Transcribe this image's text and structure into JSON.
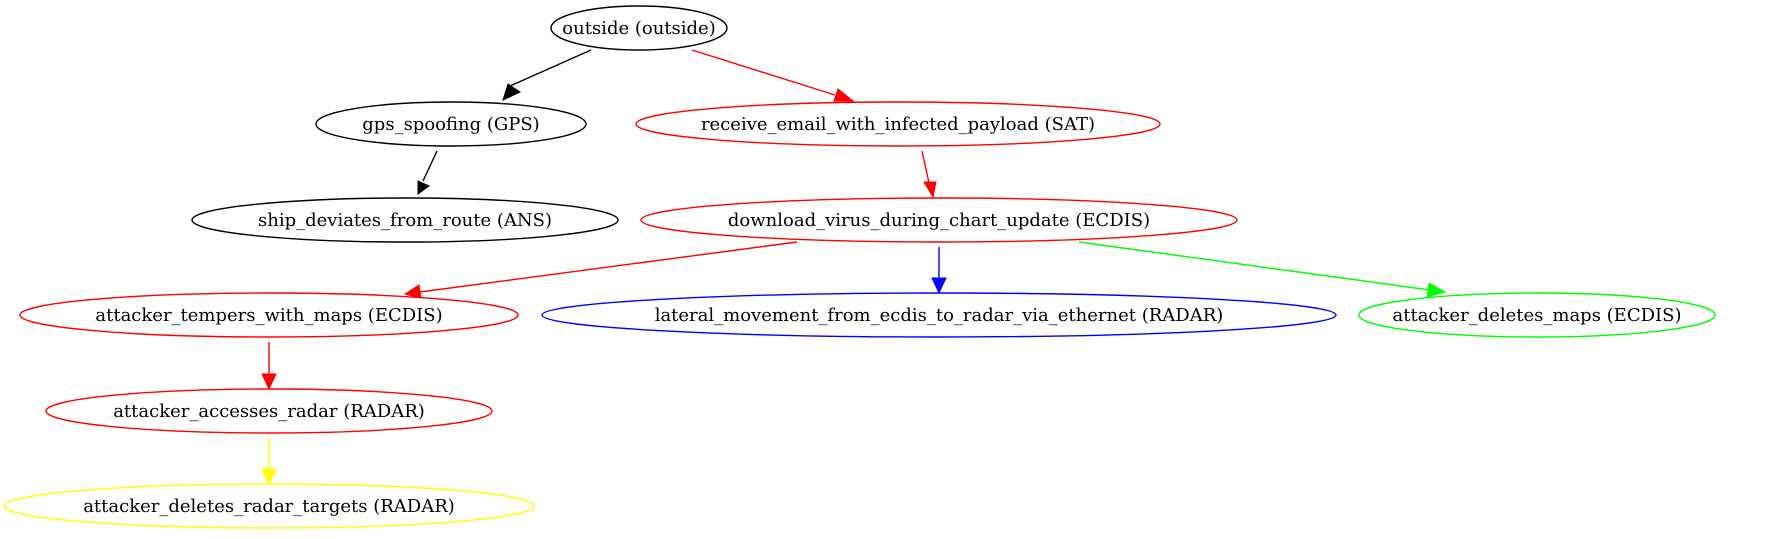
{
  "graph": {
    "nodes": [
      {
        "id": "outside",
        "label": "outside (outside)",
        "color": "#000000"
      },
      {
        "id": "gps_spoofing",
        "label": "gps_spoofing (GPS)",
        "color": "#000000"
      },
      {
        "id": "receive_email",
        "label": "receive_email_with_infected_payload (SAT)",
        "color": "#ff0000"
      },
      {
        "id": "ship_deviates",
        "label": "ship_deviates_from_route (ANS)",
        "color": "#000000"
      },
      {
        "id": "download_virus",
        "label": "download_virus_during_chart_update (ECDIS)",
        "color": "#ff0000"
      },
      {
        "id": "tempers_maps",
        "label": "attacker_tempers_with_maps (ECDIS)",
        "color": "#ff0000"
      },
      {
        "id": "lateral_movement",
        "label": "lateral_movement_from_ecdis_to_radar_via_ethernet (RADAR)",
        "color": "#0000ff"
      },
      {
        "id": "deletes_maps",
        "label": "attacker_deletes_maps (ECDIS)",
        "color": "#00ff00"
      },
      {
        "id": "accesses_radar",
        "label": "attacker_accesses_radar (RADAR)",
        "color": "#ff0000"
      },
      {
        "id": "deletes_radar_targets",
        "label": "attacker_deletes_radar_targets (RADAR)",
        "color": "#ffff00"
      }
    ],
    "edges": [
      {
        "from": "outside",
        "to": "gps_spoofing",
        "color": "#000000"
      },
      {
        "from": "outside",
        "to": "receive_email",
        "color": "#ff0000"
      },
      {
        "from": "gps_spoofing",
        "to": "ship_deviates",
        "color": "#000000"
      },
      {
        "from": "receive_email",
        "to": "download_virus",
        "color": "#ff0000"
      },
      {
        "from": "download_virus",
        "to": "tempers_maps",
        "color": "#ff0000"
      },
      {
        "from": "download_virus",
        "to": "lateral_movement",
        "color": "#0000ff"
      },
      {
        "from": "download_virus",
        "to": "deletes_maps",
        "color": "#00ff00"
      },
      {
        "from": "tempers_maps",
        "to": "accesses_radar",
        "color": "#ff0000"
      },
      {
        "from": "accesses_radar",
        "to": "deletes_radar_targets",
        "color": "#ffff00"
      }
    ]
  }
}
